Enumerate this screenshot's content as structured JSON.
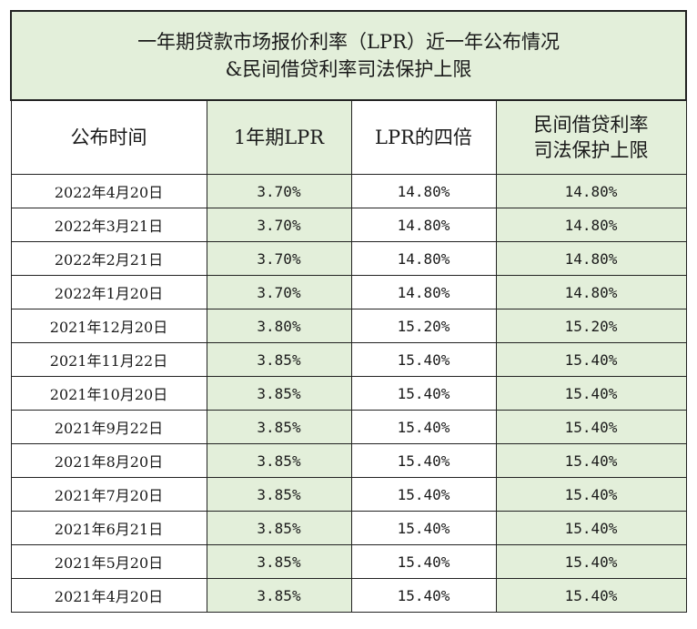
{
  "title": {
    "line1": "一年期贷款市场报价利率（LPR）近一年公布情况",
    "line2": "&民间借贷利率司法保护上限"
  },
  "headers": {
    "date": "公布时间",
    "lpr": "1年期LPR",
    "lpr4": "LPR的四倍",
    "cap_line1": "民间借贷利率",
    "cap_line2": "司法保护上限"
  },
  "rows": [
    {
      "date": "2022年4月20日",
      "lpr": "3.70%",
      "lpr4": "14.80%",
      "cap": "14.80%"
    },
    {
      "date": "2022年3月21日",
      "lpr": "3.70%",
      "lpr4": "14.80%",
      "cap": "14.80%"
    },
    {
      "date": "2022年2月21日",
      "lpr": "3.70%",
      "lpr4": "14.80%",
      "cap": "14.80%"
    },
    {
      "date": "2022年1月20日",
      "lpr": "3.70%",
      "lpr4": "14.80%",
      "cap": "14.80%"
    },
    {
      "date": "2021年12月20日",
      "lpr": "3.80%",
      "lpr4": "15.20%",
      "cap": "15.20%"
    },
    {
      "date": "2021年11月22日",
      "lpr": "3.85%",
      "lpr4": "15.40%",
      "cap": "15.40%"
    },
    {
      "date": "2021年10月20日",
      "lpr": "3.85%",
      "lpr4": "15.40%",
      "cap": "15.40%"
    },
    {
      "date": "2021年9月22日",
      "lpr": "3.85%",
      "lpr4": "15.40%",
      "cap": "15.40%"
    },
    {
      "date": "2021年8月20日",
      "lpr": "3.85%",
      "lpr4": "15.40%",
      "cap": "15.40%"
    },
    {
      "date": "2021年7月20日",
      "lpr": "3.85%",
      "lpr4": "15.40%",
      "cap": "15.40%"
    },
    {
      "date": "2021年6月21日",
      "lpr": "3.85%",
      "lpr4": "15.40%",
      "cap": "15.40%"
    },
    {
      "date": "2021年5月20日",
      "lpr": "3.85%",
      "lpr4": "15.40%",
      "cap": "15.40%"
    },
    {
      "date": "2021年4月20日",
      "lpr": "3.85%",
      "lpr4": "15.40%",
      "cap": "15.40%"
    }
  ],
  "colors": {
    "green_fill": "#e3efda",
    "white_fill": "#ffffff",
    "border": "#222222"
  }
}
